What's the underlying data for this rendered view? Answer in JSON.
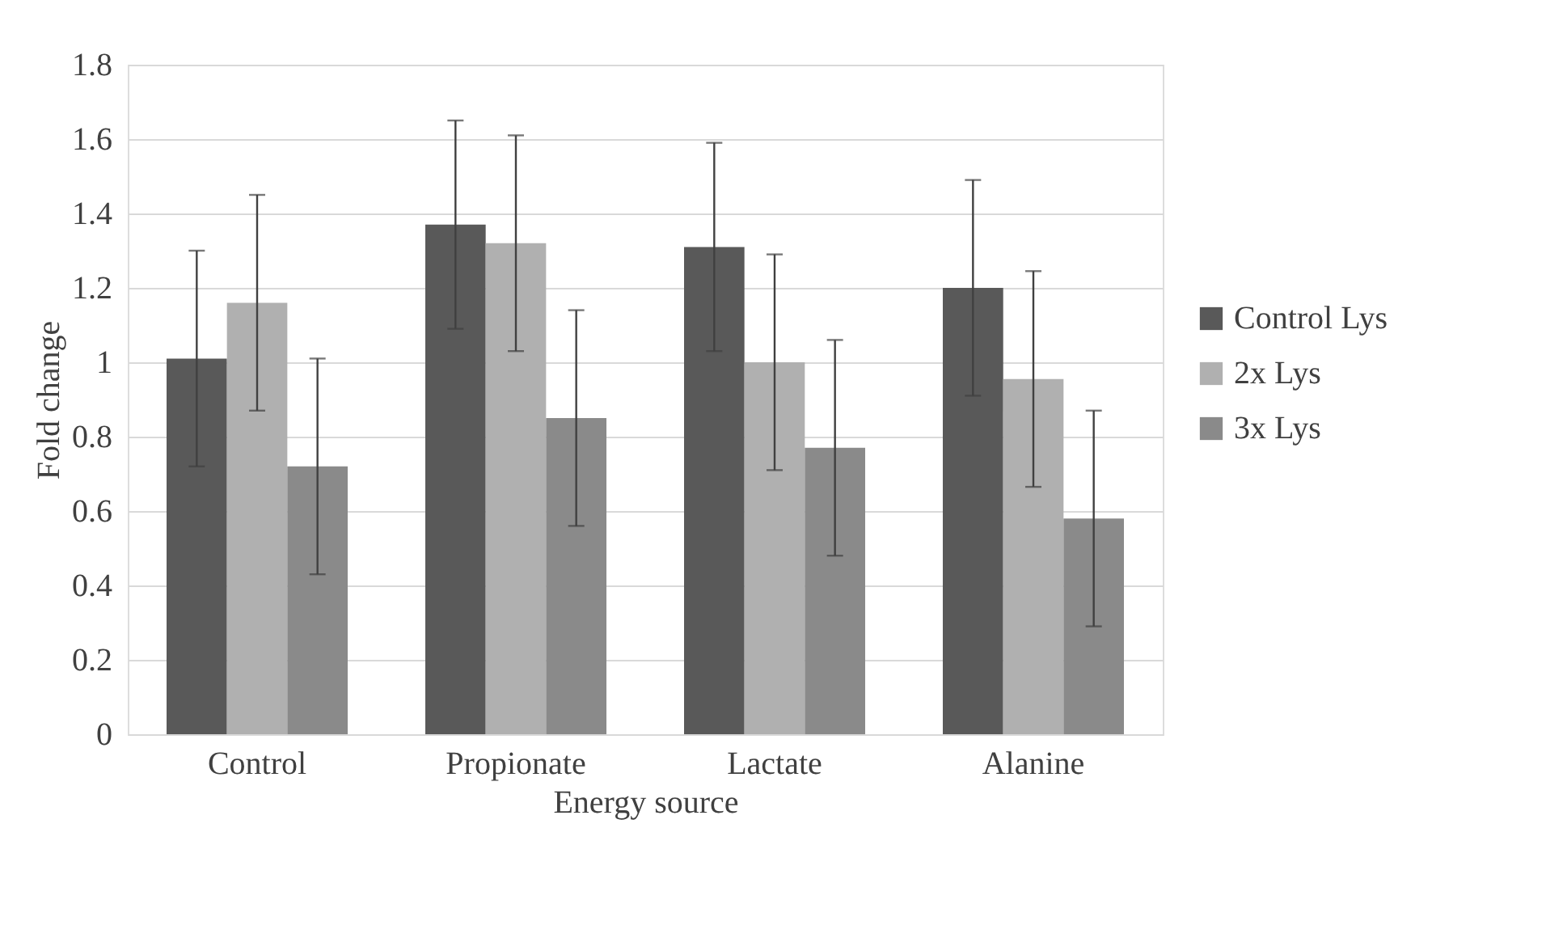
{
  "chart_data": {
    "type": "bar",
    "xlabel": "Energy source",
    "ylabel": "Fold change",
    "categories": [
      "Control",
      "Propionate",
      "Lactate",
      "Alanine"
    ],
    "series": [
      {
        "name": "Control Lys",
        "color": "#595959",
        "values": [
          1.01,
          1.37,
          1.31,
          1.2
        ],
        "errors": [
          0.29,
          0.28,
          0.28,
          0.29
        ]
      },
      {
        "name": "2x Lys",
        "color": "#b0b0b0",
        "values": [
          1.16,
          1.32,
          1.0,
          0.955
        ],
        "errors": [
          0.29,
          0.29,
          0.29,
          0.29
        ]
      },
      {
        "name": "3x Lys",
        "color": "#8a8a8a",
        "values": [
          0.72,
          0.85,
          0.77,
          0.58
        ],
        "errors": [
          0.29,
          0.29,
          0.29,
          0.29
        ]
      }
    ],
    "ylim": [
      0,
      1.8
    ],
    "yticks": [
      0,
      0.2,
      0.4,
      0.6,
      0.8,
      1,
      1.2,
      1.4,
      1.6,
      1.8
    ],
    "grid": "y",
    "legend": "right"
  }
}
